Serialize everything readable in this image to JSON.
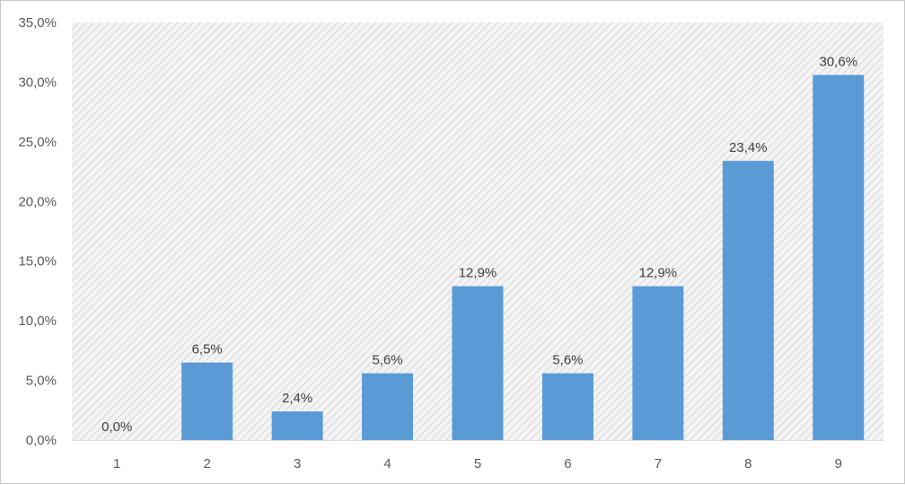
{
  "chart_data": {
    "type": "bar",
    "categories": [
      "1",
      "2",
      "3",
      "4",
      "5",
      "6",
      "7",
      "8",
      "9"
    ],
    "values": [
      0.0,
      6.5,
      2.4,
      5.6,
      12.9,
      5.6,
      12.9,
      23.4,
      30.6
    ],
    "data_labels": [
      "0,0%",
      "6,5%",
      "2,4%",
      "5,6%",
      "12,9%",
      "5,6%",
      "12,9%",
      "23,4%",
      "30,6%"
    ],
    "y_ticks": [
      0,
      5,
      10,
      15,
      20,
      25,
      30,
      35
    ],
    "y_tick_labels": [
      "0,0%",
      "5,0%",
      "10,0%",
      "15,0%",
      "20,0%",
      "25,0%",
      "30,0%",
      "35,0%"
    ],
    "ylim": [
      0,
      35
    ],
    "title": "",
    "xlabel": "",
    "ylabel": "",
    "grid": false,
    "legend": "none",
    "colors": {
      "bar": "#5b9bd5",
      "plot_background": "#f2f2f2",
      "hatch": "#d9d9d9",
      "axis_text": "#595959"
    }
  }
}
